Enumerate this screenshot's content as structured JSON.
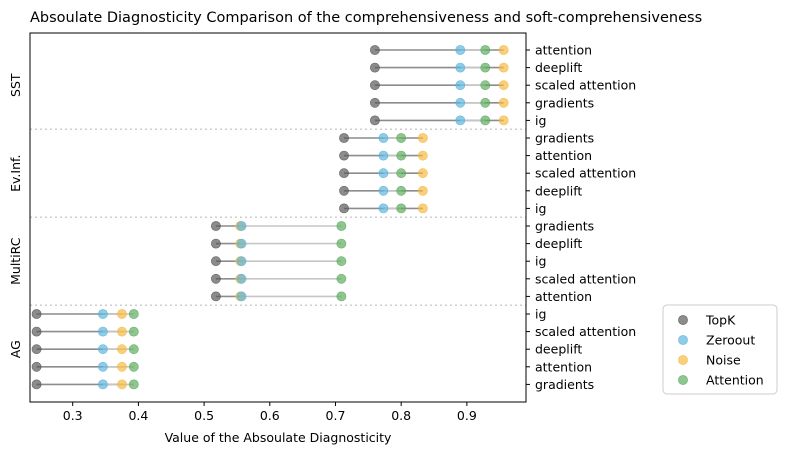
{
  "chart_data": {
    "type": "scatter",
    "title": "Absoulate Diagnosticity Comparison of the comprehensiveness and soft-comprehensiveness",
    "xlabel": "Value of the Absoulate Diagnosticity",
    "ylabel": "",
    "xlim": [
      0.235,
      0.99
    ],
    "x_ticks": [
      "0.3",
      "0.4",
      "0.5",
      "0.6",
      "0.7",
      "0.8",
      "0.9"
    ],
    "grid": false,
    "legend_position": "bottom-right outside",
    "series": [
      {
        "name": "TopK",
        "color": "#555555"
      },
      {
        "name": "Zeroout",
        "color": "#5ab4dc"
      },
      {
        "name": "Noise",
        "color": "#f5b940"
      },
      {
        "name": "Attention",
        "color": "#5aab5a"
      }
    ],
    "groups": [
      {
        "name": "SST",
        "rows": [
          {
            "label": "attention",
            "values": [
              0.76,
              0.89,
              0.956,
              0.928
            ]
          },
          {
            "label": "deeplift",
            "values": [
              0.76,
              0.89,
              0.956,
              0.928
            ]
          },
          {
            "label": "scaled attention",
            "values": [
              0.76,
              0.89,
              0.956,
              0.928
            ]
          },
          {
            "label": "gradients",
            "values": [
              0.76,
              0.89,
              0.956,
              0.928
            ]
          },
          {
            "label": "ig",
            "values": [
              0.76,
              0.89,
              0.956,
              0.928
            ]
          }
        ]
      },
      {
        "name": "Ev.Inf.",
        "rows": [
          {
            "label": "gradients",
            "values": [
              0.713,
              0.773,
              0.833,
              0.8
            ]
          },
          {
            "label": "attention",
            "values": [
              0.713,
              0.773,
              0.833,
              0.8
            ]
          },
          {
            "label": "scaled attention",
            "values": [
              0.713,
              0.773,
              0.833,
              0.8
            ]
          },
          {
            "label": "deeplift",
            "values": [
              0.713,
              0.773,
              0.833,
              0.8
            ]
          },
          {
            "label": "ig",
            "values": [
              0.713,
              0.773,
              0.833,
              0.8
            ]
          }
        ]
      },
      {
        "name": "MultiRC",
        "rows": [
          {
            "label": "gradients",
            "values": [
              0.518,
              0.557,
              0.555,
              0.709
            ]
          },
          {
            "label": "deeplift",
            "values": [
              0.518,
              0.557,
              0.555,
              0.709
            ]
          },
          {
            "label": "ig",
            "values": [
              0.518,
              0.557,
              0.555,
              0.709
            ]
          },
          {
            "label": "scaled attention",
            "values": [
              0.518,
              0.557,
              0.555,
              0.709
            ]
          },
          {
            "label": "attention",
            "values": [
              0.518,
              0.557,
              0.555,
              0.709
            ]
          }
        ]
      },
      {
        "name": "AG",
        "rows": [
          {
            "label": "ig",
            "values": [
              0.245,
              0.346,
              0.375,
              0.393
            ]
          },
          {
            "label": "scaled attention",
            "values": [
              0.245,
              0.346,
              0.375,
              0.393
            ]
          },
          {
            "label": "deeplift",
            "values": [
              0.245,
              0.346,
              0.375,
              0.393
            ]
          },
          {
            "label": "attention",
            "values": [
              0.245,
              0.346,
              0.375,
              0.393
            ]
          },
          {
            "label": "gradients",
            "values": [
              0.245,
              0.346,
              0.375,
              0.393
            ]
          }
        ]
      }
    ]
  }
}
